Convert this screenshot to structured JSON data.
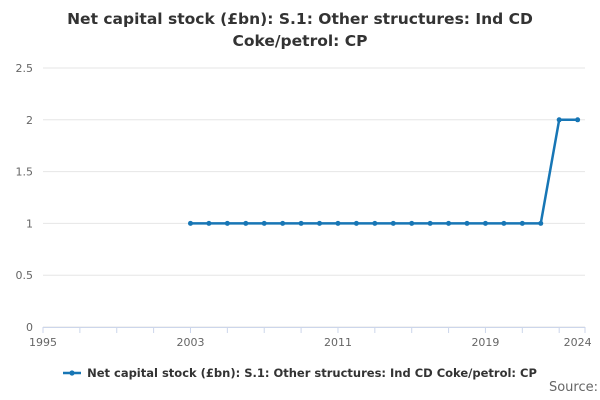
{
  "chart_data": {
    "type": "line",
    "title": "Net capital stock (£bn): S.1: Other structures: Ind CD Coke/petrol: CP",
    "title_lines": [
      "Net capital stock (£bn): S.1: Other structures: Ind CD",
      "Coke/petrol: CP"
    ],
    "x": [
      2003,
      2004,
      2005,
      2006,
      2007,
      2008,
      2009,
      2010,
      2011,
      2012,
      2013,
      2014,
      2015,
      2016,
      2017,
      2018,
      2019,
      2020,
      2021,
      2022,
      2023,
      2024
    ],
    "series": [
      {
        "name": "Net capital stock (£bn): S.1: Other structures: Ind CD Coke/petrol: CP",
        "values": [
          1,
          1,
          1,
          1,
          1,
          1,
          1,
          1,
          1,
          1,
          1,
          1,
          1,
          1,
          1,
          1,
          1,
          1,
          1,
          1,
          2,
          2
        ]
      }
    ],
    "xlim": [
      1995,
      2024.4
    ],
    "ylim": [
      0,
      2.5
    ],
    "y_ticks": [
      0,
      0.5,
      1,
      1.5,
      2,
      2.5
    ],
    "y_tick_labels": [
      "0",
      "0.5",
      "1",
      "1.5",
      "2",
      "2.5"
    ],
    "x_tick_step": 2,
    "x_labeled_ticks": [
      1995,
      2003,
      2011,
      2019,
      2024
    ],
    "grid": true,
    "legend_position": "bottom-center",
    "marker": "circle"
  },
  "colors": {
    "line": "#1776b5",
    "grid": "#e6e6e6",
    "axis": "#ccd6eb",
    "tick_label": "#666666",
    "title": "#333333",
    "legend_text": "#333333",
    "source_text": "#666666",
    "background": "#ffffff"
  },
  "footer": {
    "source_label": "Source:"
  }
}
